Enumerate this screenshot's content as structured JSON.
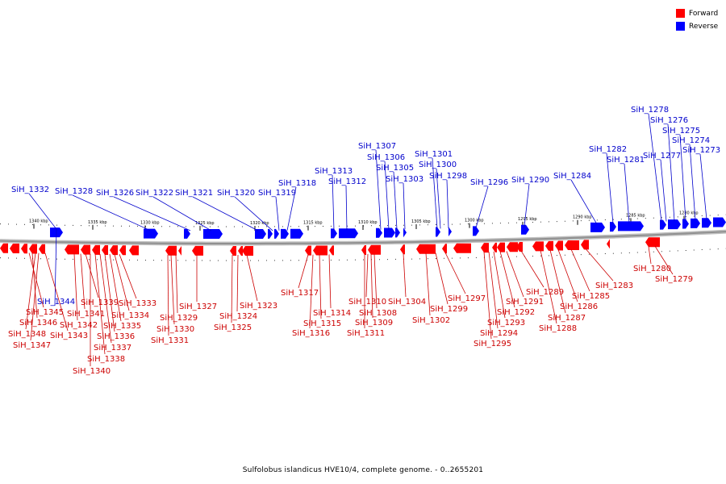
{
  "legend": {
    "forward_label": "Forward",
    "reverse_label": "Reverse",
    "forward_color": "#ff0000",
    "reverse_color": "#0000ff"
  },
  "caption": "Sulfolobus islandicus HVE10/4, complete genome. - 0..2655201",
  "colors": {
    "backbone": "#909090",
    "forward": "#ff0000",
    "reverse": "#0000ff",
    "label_forward": "#cc0000",
    "label_reverse": "#0000cc"
  },
  "scale_ticks": [
    "1340 kbp",
    "1335 kbp",
    "1330 kbp",
    "1325 kbp",
    "1320 kbp",
    "1315 kbp",
    "1310 kbp",
    "1305 kbp",
    "1300 kbp",
    "1295 kbp",
    "1290 kbp",
    "1285 kbp",
    "1280 kbp"
  ],
  "reverse_genes": [
    "SiH_1344",
    "SiH_1332",
    "SiH_1328",
    "SiH_1326",
    "SiH_1322",
    "SiH_1321",
    "SiH_1320",
    "SiH_1319",
    "SiH_1318",
    "SiH_1313",
    "SiH_1312",
    "SiH_1307",
    "SiH_1306",
    "SiH_1305",
    "SiH_1303",
    "SiH_1301",
    "SiH_1300",
    "SiH_1298",
    "SiH_1296",
    "SiH_1290",
    "SiH_1284",
    "SiH_1282",
    "SiH_1281",
    "SiH_1278",
    "SiH_1277",
    "SiH_1276",
    "SiH_1275",
    "SiH_1274",
    "SiH_1273"
  ],
  "forward_genes": [
    "SiH_1345",
    "SiH_1346",
    "SiH_1348",
    "SiH_1347",
    "SiH_1343",
    "SiH_1342",
    "SiH_1341",
    "SiH_1339",
    "SiH_1340",
    "SiH_1338",
    "SiH_1337",
    "SiH_1336",
    "SiH_1335",
    "SiH_1334",
    "SiH_1333",
    "SiH_1331",
    "SiH_1330",
    "SiH_1329",
    "SiH_1327",
    "SiH_1325",
    "SiH_1324",
    "SiH_1323",
    "SiH_1317",
    "SiH_1316",
    "SiH_1315",
    "SiH_1314",
    "SiH_1311",
    "SiH_1310",
    "SiH_1309",
    "SiH_1308",
    "SiH_1304",
    "SiH_1302",
    "SiH_1299",
    "SiH_1297",
    "SiH_1295",
    "SiH_1294",
    "SiH_1293",
    "SiH_1292",
    "SiH_1291",
    "SiH_1289",
    "SiH_1288",
    "SiH_1287",
    "SiH_1286",
    "SiH_1285",
    "SiH_1283",
    "SiH_1280",
    "SiH_1279"
  ]
}
